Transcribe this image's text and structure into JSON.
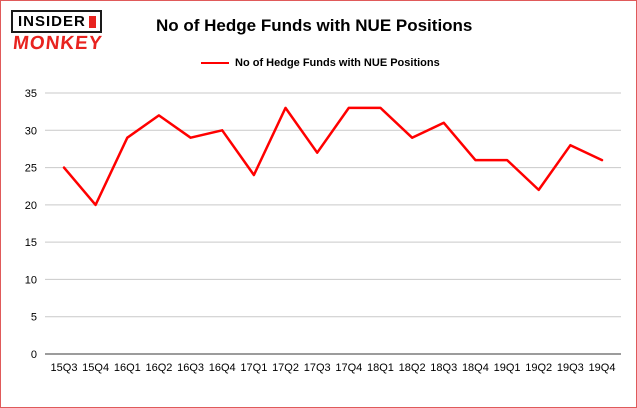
{
  "logo": {
    "line1": "INSIDER",
    "line2": "MONKEY"
  },
  "header": {
    "title": "No of Hedge Funds with NUE Positions"
  },
  "legend": {
    "label": "No of Hedge Funds with NUE Positions",
    "color": "#ff0000"
  },
  "chart_data": {
    "type": "line",
    "title": "No of Hedge Funds with NUE Positions",
    "categories": [
      "15Q3",
      "15Q4",
      "16Q1",
      "16Q2",
      "16Q3",
      "16Q4",
      "17Q1",
      "17Q2",
      "17Q3",
      "17Q4",
      "18Q1",
      "18Q2",
      "18Q3",
      "18Q4",
      "19Q1",
      "19Q2",
      "19Q3",
      "19Q4"
    ],
    "values": [
      25,
      20,
      29,
      32,
      29,
      30,
      24,
      33,
      27,
      33,
      33,
      29,
      31,
      26,
      26,
      22,
      28,
      26
    ],
    "xlabel": "",
    "ylabel": "",
    "ylim": [
      0,
      35
    ],
    "ytick_interval": 5,
    "yticks": [
      0,
      5,
      10,
      15,
      20,
      25,
      30,
      35
    ],
    "grid": true,
    "gridline_color": "#c9c9c9",
    "axis_color": "#3a3a3a",
    "line_color": "#ff0000",
    "legend_position": "top"
  }
}
